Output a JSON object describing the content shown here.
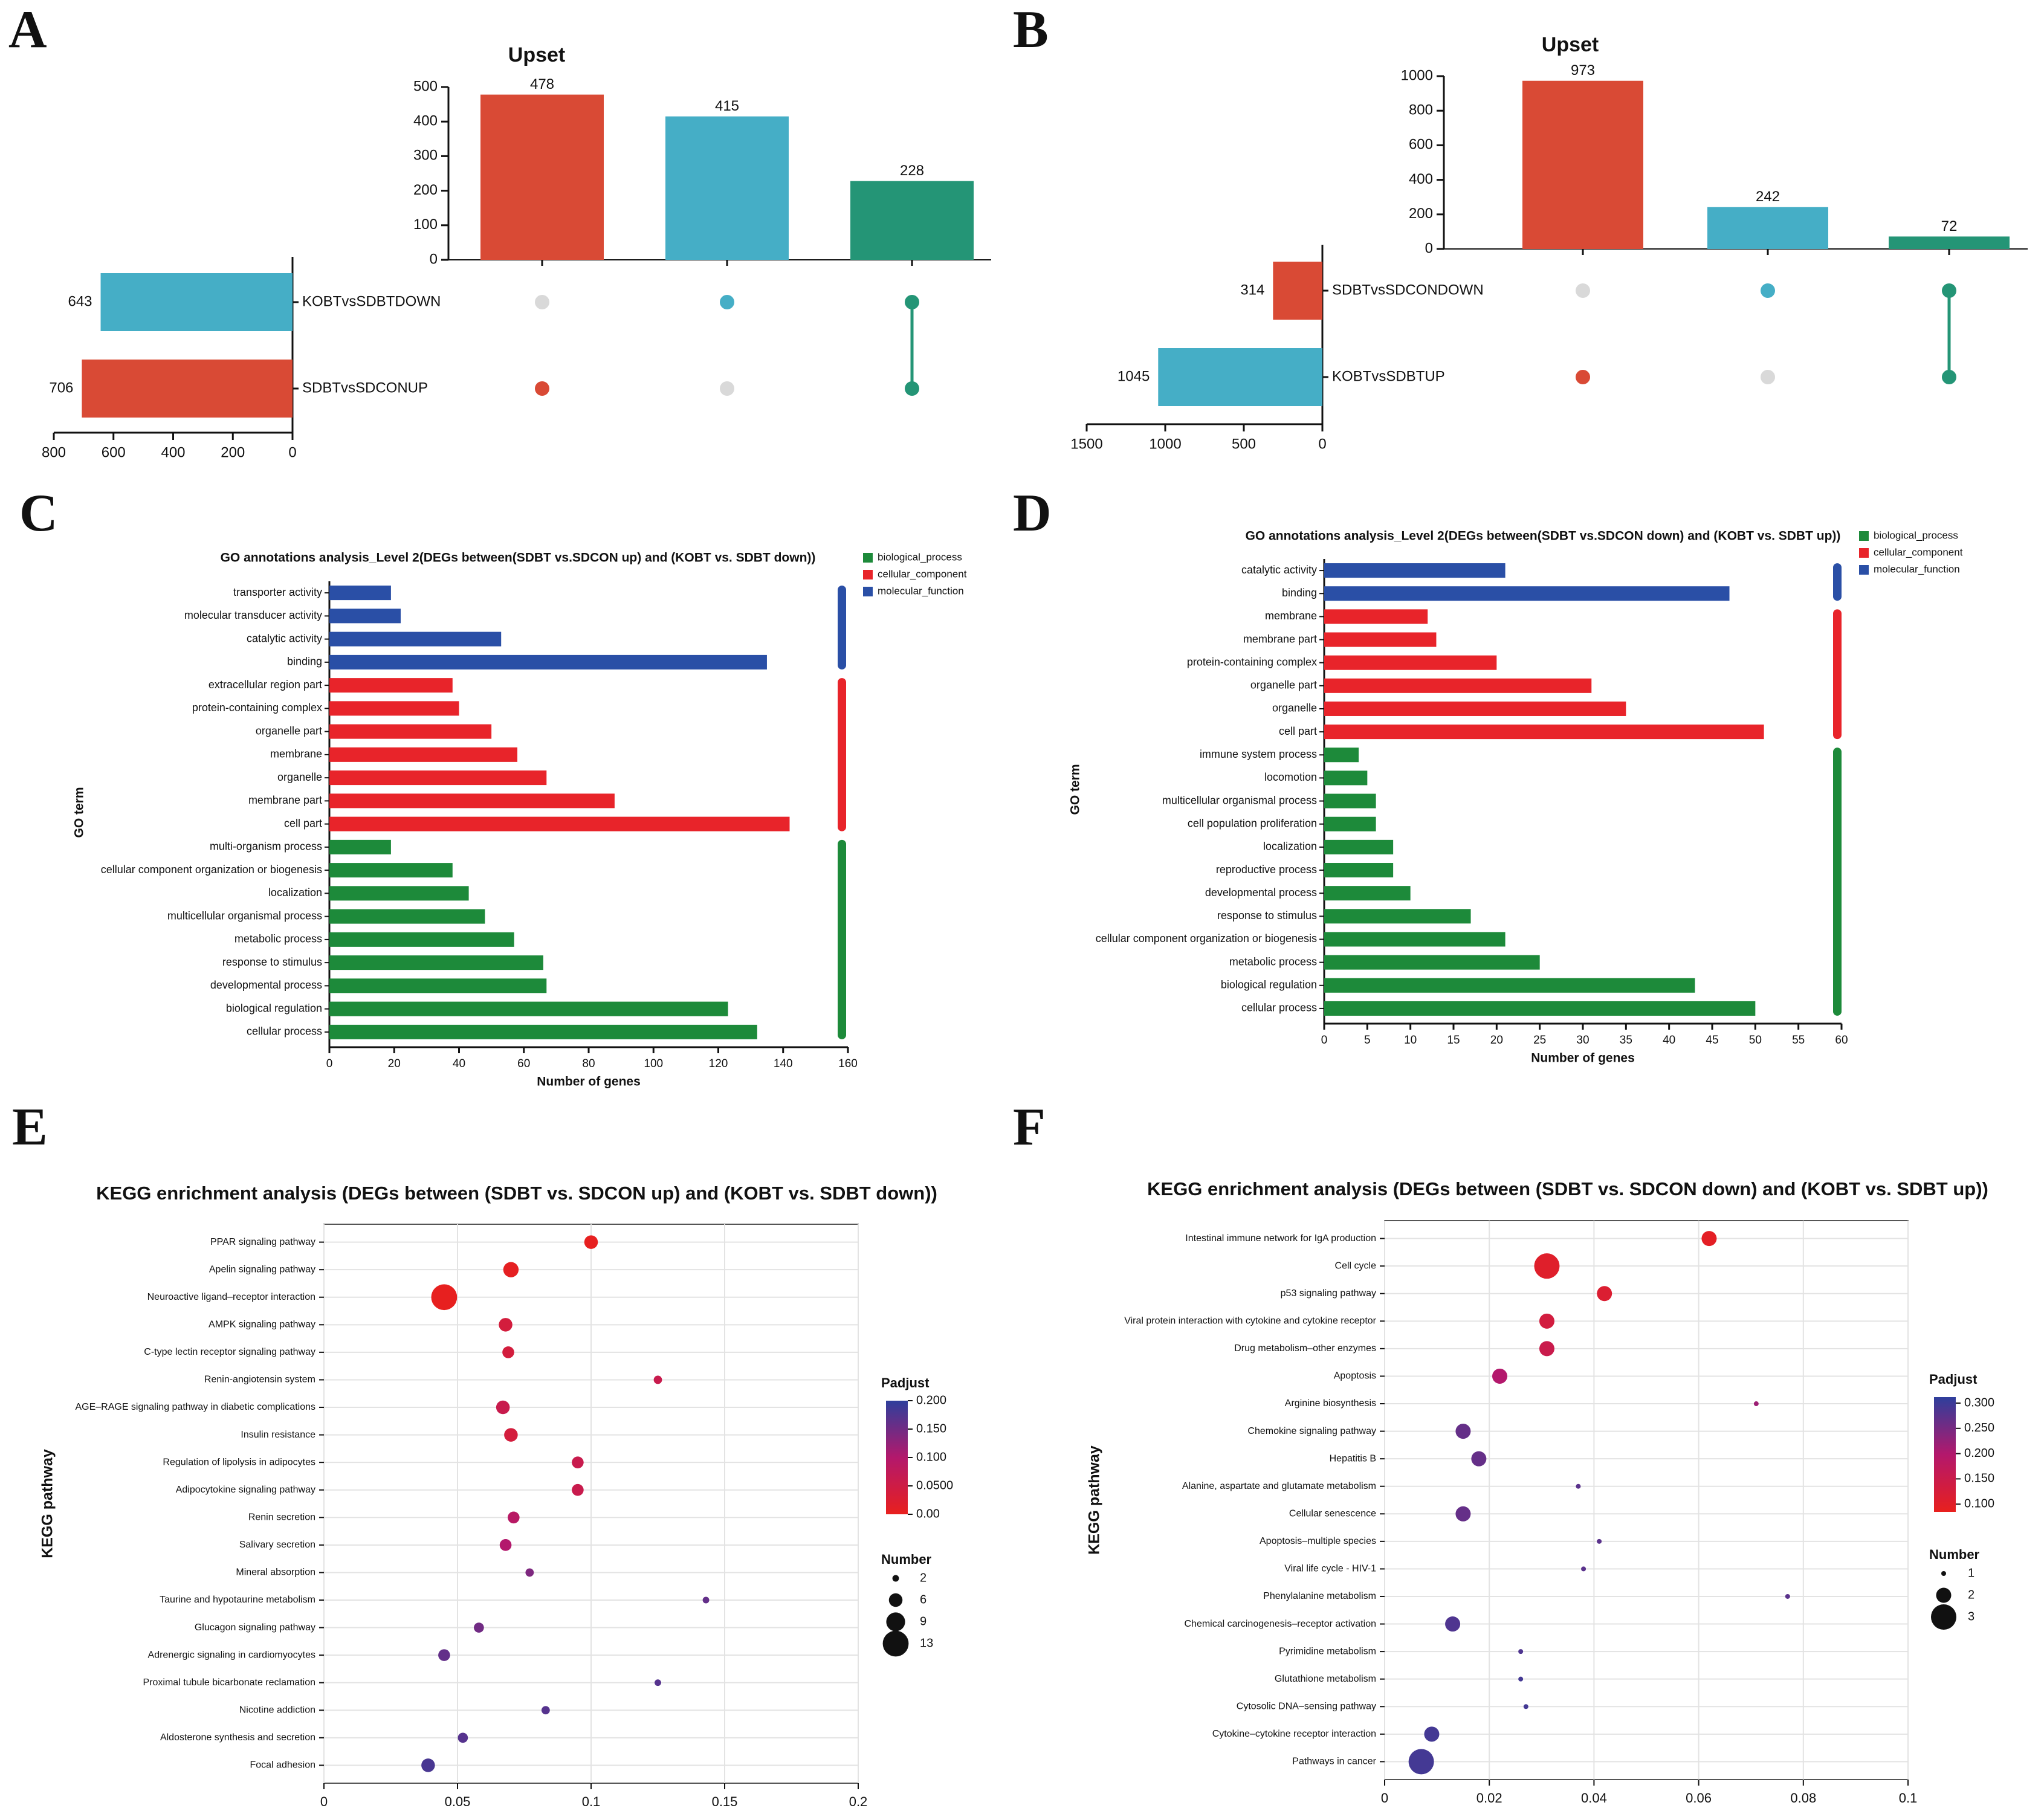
{
  "panels": {
    "A": "A",
    "B": "B",
    "C": "C",
    "D": "D",
    "E": "E",
    "F": "F"
  },
  "colors": {
    "red": "#d94a35",
    "teal": "#45aec6",
    "green": "#249576",
    "grey": "#d9d9d9",
    "bp": "#1d8a3a",
    "cc": "#e8242a",
    "mf": "#2a4fa6"
  },
  "chart_data": [
    {
      "id": "A",
      "type": "bar",
      "title": "Upset",
      "intersections": {
        "values": [
          478,
          415,
          228
        ],
        "colors": [
          "#d94a35",
          "#45aec6",
          "#249576"
        ],
        "ylim": [
          0,
          500
        ],
        "yticks": [
          0,
          100,
          200,
          300,
          400,
          500
        ]
      },
      "sets": {
        "names": [
          "KOBTvsSDBTDOWN",
          "SDBTvsSDCONUP"
        ],
        "sizes": [
          643,
          706
        ],
        "colors": [
          "#45aec6",
          "#d94a35"
        ],
        "xlim": [
          0,
          800
        ],
        "xticks": [
          800,
          600,
          400,
          200,
          0
        ]
      },
      "matrix": [
        [
          false,
          true
        ],
        [
          true,
          false
        ],
        [
          true,
          true
        ]
      ]
    },
    {
      "id": "B",
      "type": "bar",
      "title": "Upset",
      "intersections": {
        "values": [
          973,
          242,
          72
        ],
        "colors": [
          "#d94a35",
          "#45aec6",
          "#249576"
        ],
        "ylim": [
          0,
          1000
        ],
        "yticks": [
          0,
          200,
          400,
          600,
          800,
          1000
        ]
      },
      "sets": {
        "names": [
          "SDBTvsSDCONDOWN",
          "KOBTvsSDBTUP"
        ],
        "sizes": [
          314,
          1045
        ],
        "colors": [
          "#d94a35",
          "#45aec6"
        ],
        "xlim": [
          0,
          1500
        ],
        "xticks": [
          1500,
          1000,
          500,
          0
        ]
      },
      "matrix": [
        [
          false,
          true
        ],
        [
          true,
          false
        ],
        [
          true,
          true
        ]
      ]
    },
    {
      "id": "C",
      "type": "bar",
      "title": "GO annotations analysis_Level 2(DEGs between(SDBT vs.SDCON up) and (KOBT vs. SDBT down))",
      "xlabel": "Number of genes",
      "ylabel": "GO term",
      "xlim": [
        0,
        160
      ],
      "xticks": [
        0,
        20,
        40,
        60,
        80,
        100,
        120,
        140,
        160
      ],
      "legend": [
        "biological_process",
        "cellular_component",
        "molecular_function"
      ],
      "categories": [
        "transporter activity",
        "molecular transducer activity",
        "catalytic activity",
        "binding",
        "extracellular region part",
        "protein-containing complex",
        "organelle part",
        "membrane",
        "organelle",
        "membrane part",
        "cell part",
        "multi-organism process",
        "cellular component organization or biogenesis",
        "localization",
        "multicellular organismal process",
        "metabolic process",
        "response to stimulus",
        "developmental process",
        "biological regulation",
        "cellular process"
      ],
      "values": [
        19,
        22,
        53,
        135,
        38,
        40,
        50,
        58,
        67,
        88,
        142,
        19,
        38,
        43,
        48,
        57,
        66,
        67,
        123,
        132
      ],
      "groups": [
        "mf",
        "mf",
        "mf",
        "mf",
        "cc",
        "cc",
        "cc",
        "cc",
        "cc",
        "cc",
        "cc",
        "bp",
        "bp",
        "bp",
        "bp",
        "bp",
        "bp",
        "bp",
        "bp",
        "bp"
      ]
    },
    {
      "id": "D",
      "type": "bar",
      "title": "GO annotations analysis_Level 2(DEGs between(SDBT vs.SDCON down) and (KOBT vs. SDBT up))",
      "xlabel": "Number of genes",
      "ylabel": "GO term",
      "xlim": [
        0,
        60
      ],
      "xticks": [
        0,
        5,
        10,
        15,
        20,
        25,
        30,
        35,
        40,
        45,
        50,
        55,
        60
      ],
      "legend": [
        "biological_process",
        "cellular_component",
        "molecular_function"
      ],
      "categories": [
        "catalytic activity",
        "binding",
        "membrane",
        "membrane part",
        "protein-containing complex",
        "organelle part",
        "organelle",
        "cell part",
        "immune system process",
        "locomotion",
        "multicellular organismal process",
        "cell population proliferation",
        "localization",
        "reproductive process",
        "developmental process",
        "response to stimulus",
        "cellular component organization or biogenesis",
        "metabolic process",
        "biological regulation",
        "cellular process"
      ],
      "values": [
        21,
        47,
        12,
        13,
        20,
        31,
        35,
        51,
        4,
        5,
        6,
        6,
        8,
        8,
        10,
        17,
        21,
        25,
        43,
        50
      ],
      "groups": [
        "mf",
        "mf",
        "cc",
        "cc",
        "cc",
        "cc",
        "cc",
        "cc",
        "bp",
        "bp",
        "bp",
        "bp",
        "bp",
        "bp",
        "bp",
        "bp",
        "bp",
        "bp",
        "bp",
        "bp"
      ]
    },
    {
      "id": "E",
      "type": "scatter",
      "title": "KEGG enrichment analysis (DEGs between (SDBT vs. SDCON up) and (KOBT vs. SDBT down))",
      "xlabel": "Rich Factor",
      "ylabel": "KEGG pathway",
      "xlim": [
        0,
        0.2
      ],
      "xticks": [
        0,
        0.05,
        0.1,
        0.15,
        0.2
      ],
      "xtick_labels": [
        "0",
        "0.05",
        "0.1",
        "0.15",
        "0.2"
      ],
      "color_title": "Padjust",
      "color_range": [
        0,
        0.2
      ],
      "color_ticks": [
        "0.200",
        "0.150",
        "0.100",
        "0.0500",
        "0.00"
      ],
      "size_title": "Number",
      "size_legend": [
        2,
        6,
        9,
        13
      ],
      "categories": [
        "PPAR signaling pathway",
        "Apelin signaling pathway",
        "Neuroactive ligand–receptor interaction",
        "AMPK signaling pathway",
        "C-type lectin receptor signaling pathway",
        "Renin-angiotensin system",
        "AGE–RAGE signaling pathway in diabetic complications",
        "Insulin resistance",
        "Regulation of lipolysis in adipocytes",
        "Adipocytokine signaling pathway",
        "Renin secretion",
        "Salivary secretion",
        "Mineral absorption",
        "Taurine and hypotaurine metabolism",
        "Glucagon signaling pathway",
        "Adrenergic signaling in cardiomyocytes",
        "Proximal tubule bicarbonate reclamation",
        "Nicotine addiction",
        "Aldosterone synthesis and secretion",
        "Focal adhesion"
      ],
      "x": [
        0.1,
        0.07,
        0.045,
        0.068,
        0.069,
        0.125,
        0.067,
        0.07,
        0.095,
        0.095,
        0.071,
        0.068,
        0.077,
        0.143,
        0.058,
        0.045,
        0.125,
        0.083,
        0.052,
        0.039
      ],
      "padjust": [
        0.002,
        0.005,
        0.001,
        0.04,
        0.04,
        0.06,
        0.06,
        0.04,
        0.06,
        0.06,
        0.09,
        0.1,
        0.14,
        0.16,
        0.15,
        0.16,
        0.17,
        0.17,
        0.17,
        0.18
      ],
      "number": [
        6,
        7,
        13,
        6,
        5,
        3,
        6,
        6,
        5,
        5,
        5,
        5,
        3,
        2,
        4,
        5,
        2,
        3,
        4,
        6
      ]
    },
    {
      "id": "F",
      "type": "scatter",
      "title": "KEGG enrichment analysis (DEGs between (SDBT vs. SDCON down) and (KOBT vs. SDBT up))",
      "xlabel": "Rich Factor",
      "ylabel": "KEGG pathway",
      "xlim": [
        0,
        0.1
      ],
      "xticks": [
        0,
        0.02,
        0.04,
        0.06,
        0.08,
        0.1
      ],
      "xtick_labels": [
        "0",
        "0.02",
        "0.04",
        "0.06",
        "0.08",
        "0.1"
      ],
      "color_title": "Padjust",
      "color_range": [
        0.08,
        0.32
      ],
      "color_ticks": [
        "0.300",
        "0.250",
        "0.200",
        "0.150",
        "0.100"
      ],
      "size_title": "Number",
      "size_legend": [
        1,
        2,
        3
      ],
      "categories": [
        "Intestinal immune network for IgA production",
        "Cell cycle",
        "p53 signaling pathway",
        "Viral protein interaction with cytokine and cytokine receptor",
        "Drug metabolism–other enzymes",
        "Apoptosis",
        "Arginine biosynthesis",
        "Chemokine signaling pathway",
        "Hepatitis B",
        "Alanine, aspartate and glutamate metabolism",
        "Cellular senescence",
        "Apoptosis–multiple species",
        "Viral life cycle - HIV-1",
        "Phenylalanine metabolism",
        "Chemical carcinogenesis–receptor activation",
        "Pyrimidine metabolism",
        "Glutathione metabolism",
        "Cytosolic DNA–sensing pathway",
        "Cytokine–cytokine receptor interaction",
        "Pathways in cancer"
      ],
      "x": [
        0.062,
        0.031,
        0.042,
        0.031,
        0.031,
        0.022,
        0.071,
        0.015,
        0.018,
        0.037,
        0.015,
        0.041,
        0.038,
        0.077,
        0.013,
        0.026,
        0.026,
        0.027,
        0.009,
        0.007
      ],
      "padjust": [
        0.09,
        0.1,
        0.11,
        0.13,
        0.15,
        0.2,
        0.22,
        0.27,
        0.27,
        0.28,
        0.27,
        0.28,
        0.28,
        0.28,
        0.29,
        0.29,
        0.3,
        0.3,
        0.3,
        0.3
      ],
      "number": [
        2,
        3,
        2,
        2,
        2,
        2,
        1,
        2,
        2,
        1,
        2,
        1,
        1,
        1,
        2,
        1,
        1,
        1,
        2,
        3
      ]
    }
  ]
}
